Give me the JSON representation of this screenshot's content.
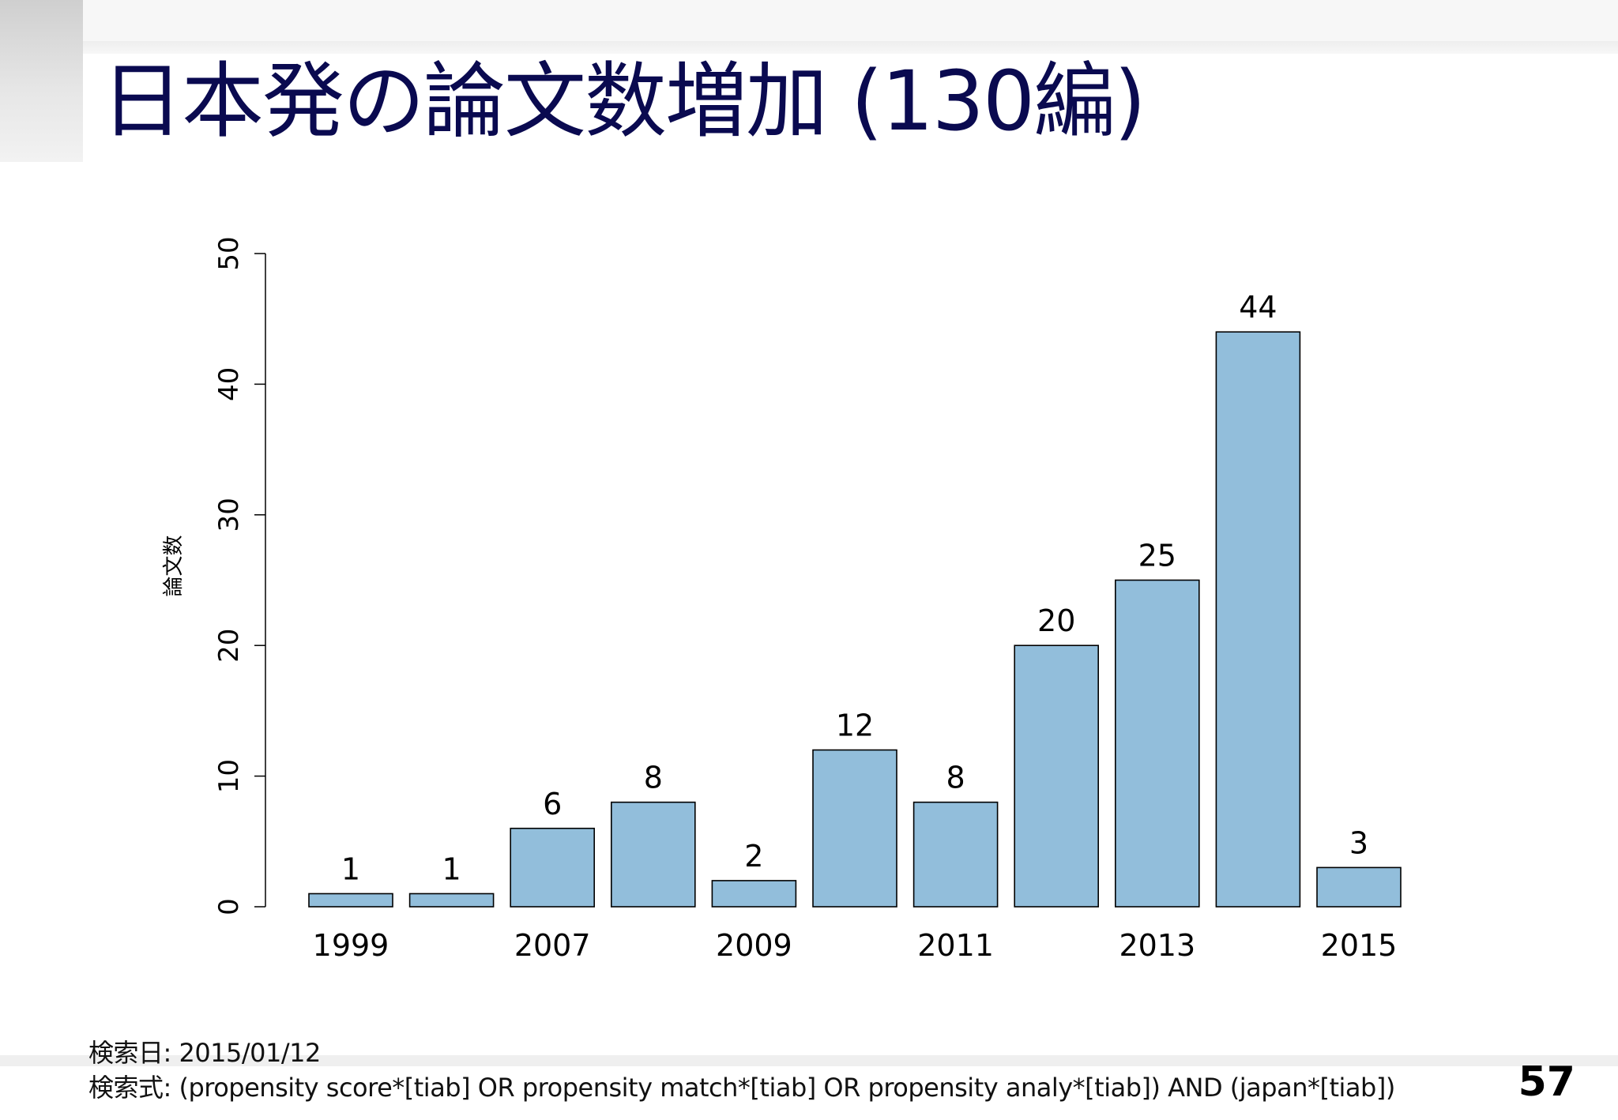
{
  "slide": {
    "title": "日本発の論文数増加 (130編)",
    "search_date": "検索日: 2015/01/12",
    "search_query": "検索式: (propensity score*[tiab] OR propensity match*[tiab] OR propensity analy*[tiab]) AND (japan*[tiab])",
    "page_number": "57"
  },
  "chart_data": {
    "type": "bar",
    "title": "",
    "xlabel": "",
    "ylabel": "論文数",
    "categories": [
      "1999",
      "",
      "2007",
      "",
      "2009",
      "",
      "2011",
      "",
      "2013",
      "",
      "2015"
    ],
    "values": [
      1,
      1,
      6,
      8,
      2,
      12,
      8,
      20,
      25,
      44,
      3
    ],
    "data_labels": [
      "1",
      "1",
      "6",
      "8",
      "2",
      "12",
      "8",
      "20",
      "25",
      "44",
      "3"
    ],
    "ylim": [
      0,
      50
    ],
    "yticks": [
      0,
      10,
      20,
      30,
      40,
      50
    ],
    "bar_color": "#92bedb",
    "bar_stroke": "#000000",
    "grid": false,
    "legend": "none"
  }
}
